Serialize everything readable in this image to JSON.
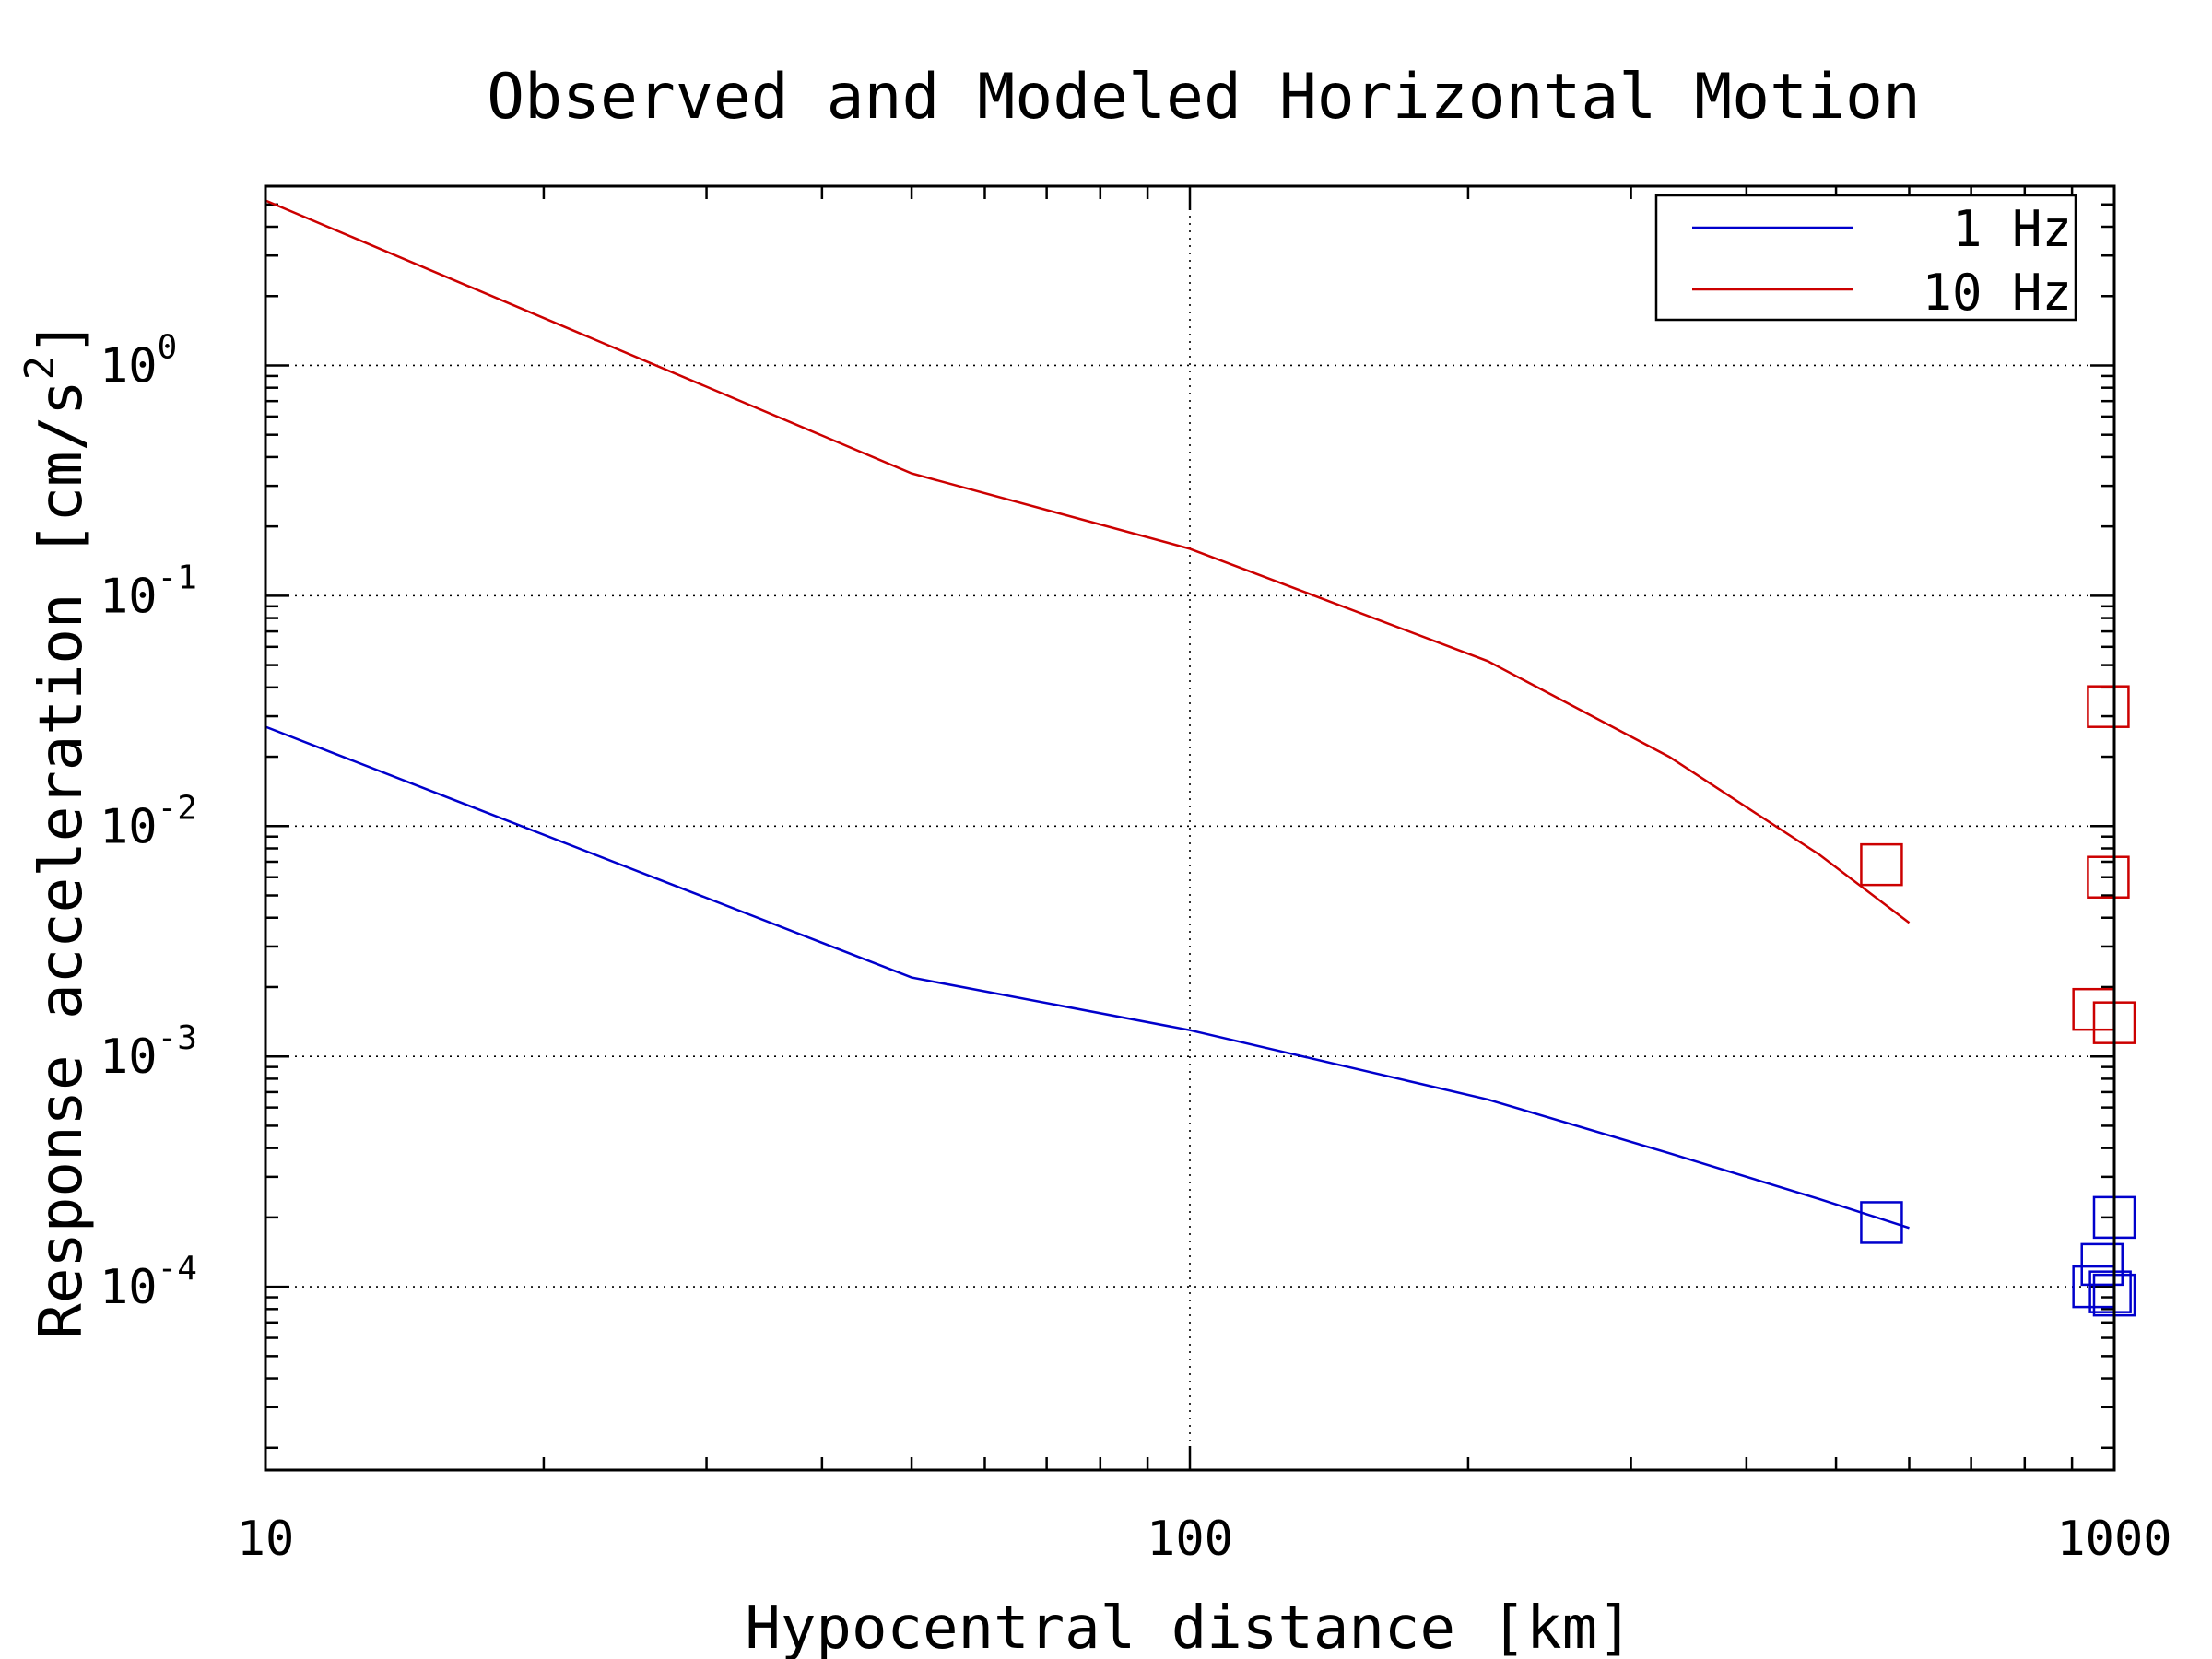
{
  "chart_data": {
    "type": "line",
    "title": "Observed and Modeled Horizontal Motion",
    "xlabel": "Hypocentral distance [km]",
    "ylabel": "Response acceleration [cm/s",
    "ylabel_sup": "2",
    "ylabel_close": "]",
    "xscale": "log",
    "yscale": "log",
    "xlim": [
      10,
      1000
    ],
    "ylim": [
      1.6e-05,
      6
    ],
    "xticks": [
      {
        "value": 10,
        "label": "10"
      },
      {
        "value": 100,
        "label": "100"
      },
      {
        "value": 1000,
        "label": "1000"
      }
    ],
    "yticks": [
      {
        "value": 1,
        "base": "10",
        "exp": "0"
      },
      {
        "value": 0.1,
        "base": "10",
        "exp": "-1"
      },
      {
        "value": 0.01,
        "base": "10",
        "exp": "-2"
      },
      {
        "value": 0.001,
        "base": "10",
        "exp": "-3"
      },
      {
        "value": 0.0001,
        "base": "10",
        "exp": "-4"
      }
    ],
    "grid": true,
    "legend_position": "top-right",
    "series": [
      {
        "name": "1 Hz",
        "color": "#0000cc",
        "line": {
          "x": [
            10,
            50,
            100,
            210,
            330,
            480,
            600
          ],
          "y": [
            0.027,
            0.0022,
            0.0013,
            0.00065,
            0.00038,
            0.00024,
            0.00018
          ]
        },
        "observed": {
          "x": [
            560,
            950,
            990,
            1000,
            970,
            1000
          ],
          "y": [
            0.00019,
            0.0001,
            9.5e-05,
            9.2e-05,
            0.000125,
            0.0002
          ]
        }
      },
      {
        "name": "10 Hz",
        "color": "#cc0000",
        "line": {
          "x": [
            10,
            50,
            100,
            210,
            330,
            480,
            600
          ],
          "y": [
            5.2,
            0.34,
            0.16,
            0.052,
            0.02,
            0.0075,
            0.0038
          ]
        },
        "observed": {
          "x": [
            560,
            985,
            985,
            950,
            1000
          ],
          "y": [
            0.0068,
            0.033,
            0.006,
            0.0016,
            0.0014
          ]
        }
      }
    ]
  }
}
